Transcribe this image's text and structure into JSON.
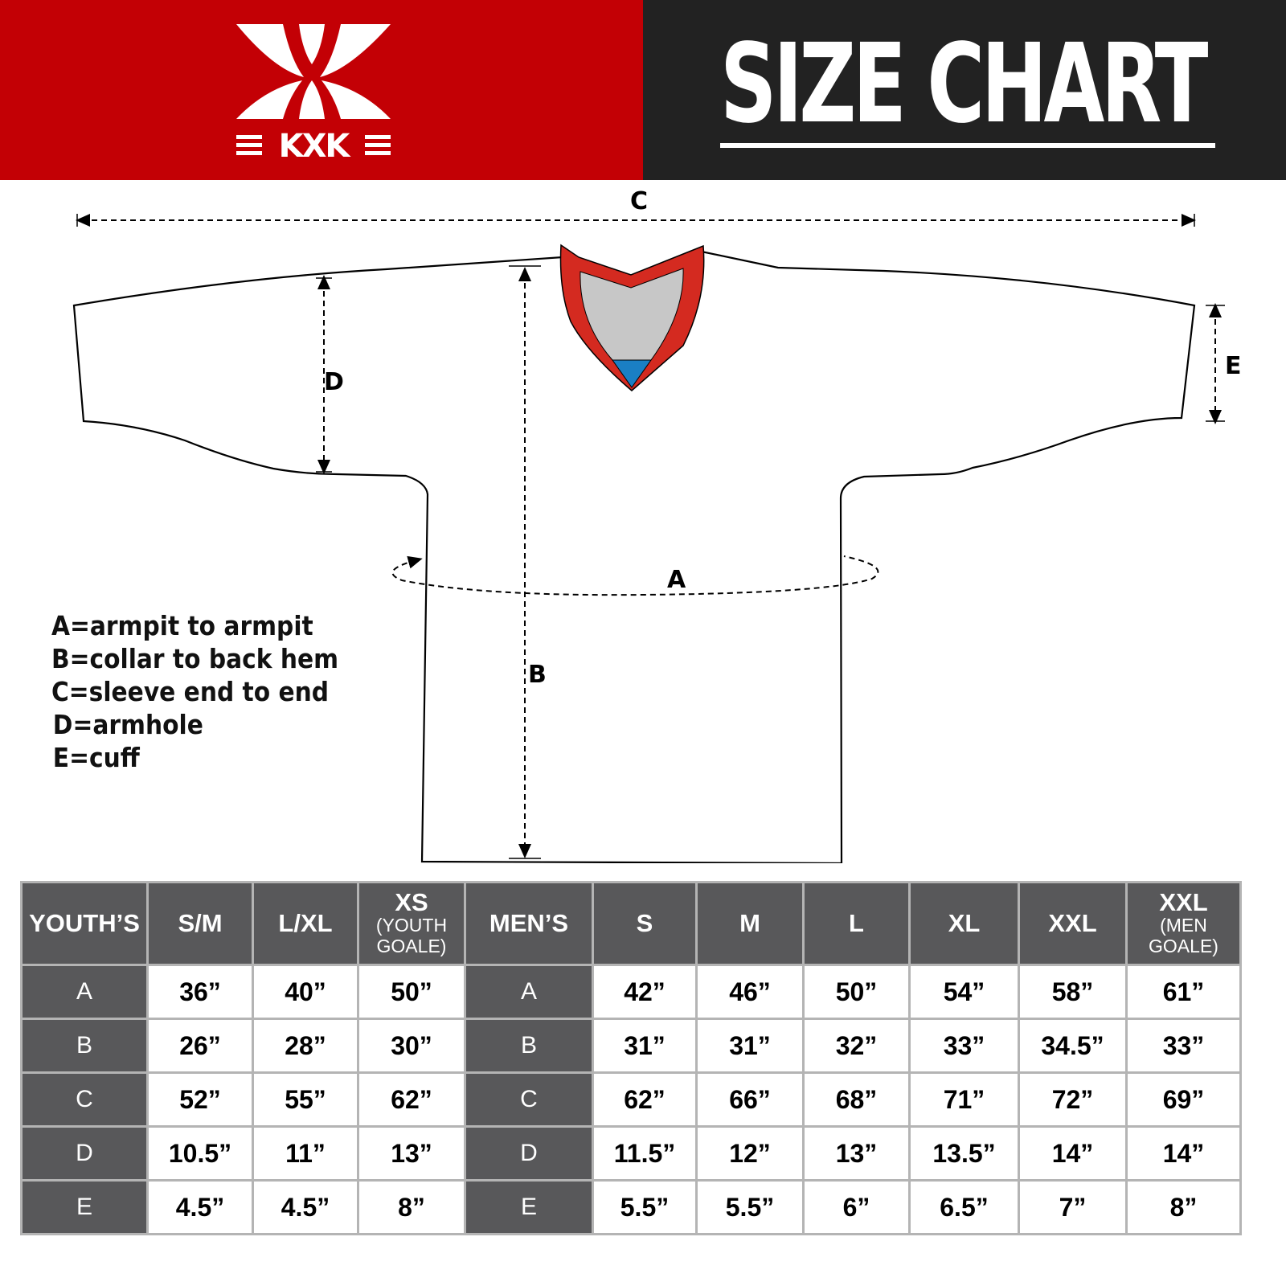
{
  "brand": {
    "logo_text": "KXK",
    "colors": {
      "red": "#c30005",
      "dark": "#222222",
      "table_gray": "#58585a",
      "collar_red": "#d42a20",
      "collar_gray": "#c7c7c7",
      "collar_blue": "#1a7fc4"
    }
  },
  "header": {
    "title": "SIZE CHART"
  },
  "diagram": {
    "labels": {
      "a": "A",
      "b": "B",
      "c": "C",
      "d": "D",
      "e": "E"
    },
    "legend": [
      "A=armpit to armpit",
      "B=collar to back hem",
      "C=sleeve end to end",
      "D=armhole",
      "E=cuff"
    ]
  },
  "table": {
    "columns": [
      {
        "main": "YOUTH’S",
        "sub": ""
      },
      {
        "main": "S/M",
        "sub": ""
      },
      {
        "main": "L/XL",
        "sub": ""
      },
      {
        "main": "XS",
        "sub": "(YOUTH GOALE)"
      },
      {
        "main": "MEN’S",
        "sub": ""
      },
      {
        "main": "S",
        "sub": ""
      },
      {
        "main": "M",
        "sub": ""
      },
      {
        "main": "L",
        "sub": ""
      },
      {
        "main": "XL",
        "sub": ""
      },
      {
        "main": "XXL",
        "sub": ""
      },
      {
        "main": "XXL",
        "sub": "(MEN GOALE)"
      }
    ],
    "rows": [
      [
        "A",
        "36”",
        "40”",
        "50”",
        "A",
        "42”",
        "46”",
        "50”",
        "54”",
        "58”",
        "61”"
      ],
      [
        "B",
        "26”",
        "28”",
        "30”",
        "B",
        "31”",
        "31”",
        "32”",
        "33”",
        "34.5”",
        "33”"
      ],
      [
        "C",
        "52”",
        "55”",
        "62”",
        "C",
        "62”",
        "66”",
        "68”",
        "71”",
        "72”",
        "69”"
      ],
      [
        "D",
        "10.5”",
        "11”",
        "13”",
        "D",
        "11.5”",
        "12”",
        "13”",
        "13.5”",
        "14”",
        "14”"
      ],
      [
        "E",
        "4.5”",
        "4.5”",
        "8”",
        "E",
        "5.5”",
        "5.5”",
        "6”",
        "6.5”",
        "7”",
        "8”"
      ]
    ]
  }
}
